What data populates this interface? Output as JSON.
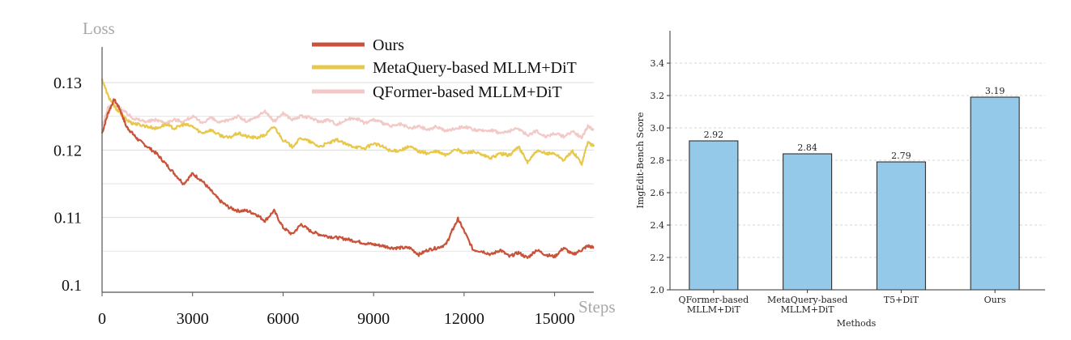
{
  "chart_data": [
    {
      "type": "line",
      "ylabel": "Loss",
      "xlabel": "Steps",
      "x_ticks": [
        "0",
        "3000",
        "6000",
        "9000",
        "12000",
        "15000"
      ],
      "y_ticks": [
        "0.13",
        "0.12",
        "0.11",
        "0.1"
      ],
      "xlim": [
        0,
        16300
      ],
      "ylim": [
        0.1,
        0.13
      ],
      "grid": "horizontal",
      "legend_position": "top-center",
      "series": [
        {
          "name": "Ours",
          "color": "#c9523a",
          "x": [
            0,
            200,
            400,
            600,
            800,
            1000,
            1200,
            1500,
            1800,
            2100,
            2400,
            2700,
            3000,
            3300,
            3600,
            3900,
            4200,
            4500,
            4800,
            5100,
            5400,
            5700,
            6000,
            6300,
            6600,
            6900,
            7200,
            7500,
            7800,
            8100,
            8400,
            8700,
            9000,
            9300,
            9600,
            9900,
            10200,
            10500,
            10800,
            11100,
            11400,
            11600,
            11800,
            12000,
            12300,
            12600,
            12900,
            13200,
            13500,
            13800,
            14100,
            14400,
            14700,
            15000,
            15300,
            15600,
            15900,
            16100,
            16300
          ],
          "values": [
            0.1225,
            0.1255,
            0.1275,
            0.126,
            0.1235,
            0.1225,
            0.1215,
            0.1205,
            0.1195,
            0.118,
            0.1165,
            0.115,
            0.1165,
            0.1155,
            0.114,
            0.1125,
            0.1115,
            0.111,
            0.111,
            0.1105,
            0.1095,
            0.111,
            0.1085,
            0.1075,
            0.109,
            0.108,
            0.1075,
            0.1072,
            0.107,
            0.1068,
            0.1065,
            0.1062,
            0.106,
            0.1058,
            0.1055,
            0.1055,
            0.1055,
            0.1045,
            0.1052,
            0.1055,
            0.106,
            0.108,
            0.1098,
            0.108,
            0.1052,
            0.105,
            0.1045,
            0.1052,
            0.1042,
            0.1048,
            0.104,
            0.1052,
            0.1045,
            0.1042,
            0.1055,
            0.1045,
            0.1052,
            0.1058,
            0.1055
          ]
        },
        {
          "name": "MetaQuery-based MLLM+DiT",
          "color": "#e8c84a",
          "x": [
            0,
            200,
            400,
            600,
            800,
            1000,
            1200,
            1500,
            1800,
            2100,
            2400,
            2700,
            3000,
            3300,
            3600,
            3900,
            4200,
            4500,
            4800,
            5100,
            5400,
            5700,
            6000,
            6300,
            6600,
            6900,
            7200,
            7500,
            7800,
            8100,
            8400,
            8700,
            9000,
            9300,
            9600,
            9900,
            10200,
            10500,
            10800,
            11100,
            11400,
            11700,
            12000,
            12300,
            12600,
            12900,
            13200,
            13500,
            13800,
            14100,
            14400,
            14700,
            15000,
            15300,
            15600,
            15900,
            16100,
            16300
          ],
          "values": [
            0.1305,
            0.128,
            0.1265,
            0.1255,
            0.1245,
            0.124,
            0.1238,
            0.1235,
            0.1232,
            0.1238,
            0.1232,
            0.1238,
            0.1235,
            0.1225,
            0.123,
            0.1222,
            0.1218,
            0.1225,
            0.122,
            0.1218,
            0.1222,
            0.1235,
            0.1215,
            0.1205,
            0.1218,
            0.1212,
            0.1205,
            0.121,
            0.1215,
            0.1208,
            0.1205,
            0.1202,
            0.121,
            0.1205,
            0.1198,
            0.12,
            0.1205,
            0.1198,
            0.1195,
            0.1198,
            0.1192,
            0.1202,
            0.1195,
            0.1198,
            0.1192,
            0.1188,
            0.1195,
            0.1192,
            0.1205,
            0.1182,
            0.1198,
            0.1195,
            0.1195,
            0.1185,
            0.1198,
            0.118,
            0.1212,
            0.1205
          ]
        },
        {
          "name": "QFormer-based MLLM+DiT",
          "color": "#f2c9c6",
          "x": [
            0,
            200,
            400,
            600,
            800,
            1000,
            1200,
            1500,
            1800,
            2100,
            2400,
            2700,
            3000,
            3300,
            3600,
            3900,
            4200,
            4500,
            4800,
            5100,
            5400,
            5700,
            6000,
            6300,
            6600,
            6900,
            7200,
            7500,
            7800,
            8100,
            8400,
            8700,
            9000,
            9300,
            9600,
            9900,
            10200,
            10500,
            10800,
            11100,
            11400,
            11700,
            12000,
            12300,
            12600,
            12900,
            13200,
            13500,
            13800,
            14100,
            14400,
            14700,
            15000,
            15300,
            15600,
            15900,
            16100,
            16300
          ],
          "values": [
            0.1235,
            0.1262,
            0.127,
            0.1262,
            0.1255,
            0.1248,
            0.1245,
            0.1242,
            0.1245,
            0.124,
            0.1245,
            0.1242,
            0.125,
            0.124,
            0.1248,
            0.124,
            0.1245,
            0.125,
            0.1242,
            0.1248,
            0.1258,
            0.1242,
            0.1255,
            0.1245,
            0.125,
            0.1248,
            0.1242,
            0.1245,
            0.1238,
            0.1245,
            0.1248,
            0.124,
            0.1245,
            0.124,
            0.1235,
            0.1238,
            0.1232,
            0.1235,
            0.123,
            0.1235,
            0.1228,
            0.1232,
            0.1235,
            0.123,
            0.1228,
            0.123,
            0.1225,
            0.1228,
            0.1232,
            0.1222,
            0.1228,
            0.122,
            0.1225,
            0.122,
            0.1228,
            0.1218,
            0.1235,
            0.123
          ]
        }
      ]
    },
    {
      "type": "bar",
      "xlabel": "Methods",
      "ylabel": "ImgEdit-Bench Score",
      "categories": [
        "QFormer-based\nMLLM+DiT",
        "MetaQuery-based\nMLLM+DiT",
        "T5+DiT",
        "Ours"
      ],
      "values": [
        2.92,
        2.84,
        2.79,
        3.19
      ],
      "data_labels": [
        "2.92",
        "2.84",
        "2.79",
        "3.19"
      ],
      "y_ticks": [
        "2.0",
        "2.2",
        "2.4",
        "2.6",
        "2.8",
        "3.0",
        "3.2",
        "3.4"
      ],
      "ylim": [
        2.0,
        3.5
      ],
      "grid": "horizontal",
      "bar_color": "#95c9ea",
      "bar_edge_color": "#1f1f1f"
    }
  ]
}
